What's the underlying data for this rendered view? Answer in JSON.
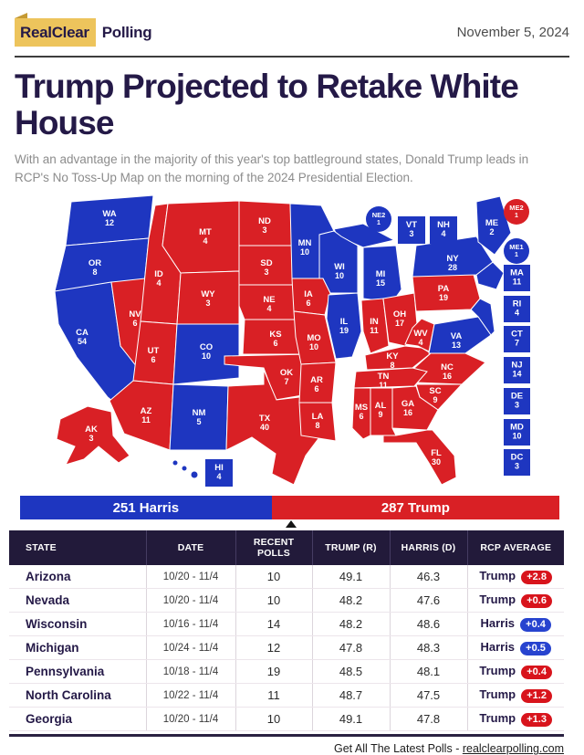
{
  "header": {
    "logo_primary": "RealClear",
    "logo_secondary": "Polling",
    "date": "November 5, 2024"
  },
  "headline": "Trump Projected to Retake White House",
  "subtitle": "With an advantage in the majority of this year's top battleground states, Donald Trump leads in RCP's No Toss-Up Map on the morning of the 2024 Presidential Election.",
  "colors": {
    "dem": "#1e36c0",
    "gop": "#d92025",
    "pill_dem": "#2743cf",
    "pill_gop": "#d8141c",
    "navy": "#241947",
    "header_bg": "#221a3a",
    "logo_yellow": "#edc45c"
  },
  "scoreboard": {
    "harris_label": "251 Harris",
    "trump_label": "287 Trump",
    "harris_ev": 251,
    "trump_ev": 287,
    "total_ev": 538,
    "majority_ev": 270
  },
  "map": {
    "states": [
      {
        "abbr": "WA",
        "ev": 12,
        "party": "dem"
      },
      {
        "abbr": "OR",
        "ev": 8,
        "party": "dem"
      },
      {
        "abbr": "CA",
        "ev": 54,
        "party": "dem"
      },
      {
        "abbr": "NV",
        "ev": 6,
        "party": "gop"
      },
      {
        "abbr": "ID",
        "ev": 4,
        "party": "gop"
      },
      {
        "abbr": "MT",
        "ev": 4,
        "party": "gop"
      },
      {
        "abbr": "WY",
        "ev": 3,
        "party": "gop"
      },
      {
        "abbr": "UT",
        "ev": 6,
        "party": "gop"
      },
      {
        "abbr": "CO",
        "ev": 10,
        "party": "dem"
      },
      {
        "abbr": "AZ",
        "ev": 11,
        "party": "gop"
      },
      {
        "abbr": "NM",
        "ev": 5,
        "party": "dem"
      },
      {
        "abbr": "ND",
        "ev": 3,
        "party": "gop"
      },
      {
        "abbr": "SD",
        "ev": 3,
        "party": "gop"
      },
      {
        "abbr": "NE",
        "ev": 4,
        "party": "gop"
      },
      {
        "abbr": "KS",
        "ev": 6,
        "party": "gop"
      },
      {
        "abbr": "OK",
        "ev": 7,
        "party": "gop"
      },
      {
        "abbr": "TX",
        "ev": 40,
        "party": "gop"
      },
      {
        "abbr": "MN",
        "ev": 10,
        "party": "dem"
      },
      {
        "abbr": "IA",
        "ev": 6,
        "party": "gop"
      },
      {
        "abbr": "MO",
        "ev": 10,
        "party": "gop"
      },
      {
        "abbr": "AR",
        "ev": 6,
        "party": "gop"
      },
      {
        "abbr": "LA",
        "ev": 8,
        "party": "gop"
      },
      {
        "abbr": "WI",
        "ev": 10,
        "party": "dem"
      },
      {
        "abbr": "IL",
        "ev": 19,
        "party": "dem"
      },
      {
        "abbr": "MI",
        "ev": 15,
        "party": "dem"
      },
      {
        "abbr": "IN",
        "ev": 11,
        "party": "gop"
      },
      {
        "abbr": "OH",
        "ev": 17,
        "party": "gop"
      },
      {
        "abbr": "KY",
        "ev": 8,
        "party": "gop"
      },
      {
        "abbr": "WV",
        "ev": 4,
        "party": "gop"
      },
      {
        "abbr": "VA",
        "ev": 13,
        "party": "dem"
      },
      {
        "abbr": "PA",
        "ev": 19,
        "party": "gop"
      },
      {
        "abbr": "NY",
        "ev": 28,
        "party": "dem"
      },
      {
        "abbr": "ME",
        "ev": 2,
        "party": "dem"
      },
      {
        "abbr": "NC",
        "ev": 16,
        "party": "gop"
      },
      {
        "abbr": "SC",
        "ev": 9,
        "party": "gop"
      },
      {
        "abbr": "GA",
        "ev": 16,
        "party": "gop"
      },
      {
        "abbr": "AL",
        "ev": 9,
        "party": "gop"
      },
      {
        "abbr": "MS",
        "ev": 6,
        "party": "gop"
      },
      {
        "abbr": "TN",
        "ev": 11,
        "party": "gop"
      },
      {
        "abbr": "FL",
        "ev": 30,
        "party": "gop"
      },
      {
        "abbr": "AK",
        "ev": 3,
        "party": "gop"
      },
      {
        "abbr": "HI",
        "ev": 4,
        "party": "dem"
      },
      {
        "abbr": "VT",
        "ev": 3,
        "party": "dem"
      },
      {
        "abbr": "NH",
        "ev": 4,
        "party": "dem"
      },
      {
        "abbr": "MA",
        "ev": 11,
        "party": "dem"
      },
      {
        "abbr": "RI",
        "ev": 4,
        "party": "dem"
      },
      {
        "abbr": "CT",
        "ev": 7,
        "party": "dem"
      },
      {
        "abbr": "NJ",
        "ev": 14,
        "party": "dem"
      },
      {
        "abbr": "DE",
        "ev": 3,
        "party": "dem"
      },
      {
        "abbr": "MD",
        "ev": 10,
        "party": "dem"
      },
      {
        "abbr": "DC",
        "ev": 3,
        "party": "dem"
      },
      {
        "abbr": "NE2",
        "ev": 1,
        "party": "dem"
      },
      {
        "abbr": "ME1",
        "ev": 1,
        "party": "dem"
      },
      {
        "abbr": "ME2",
        "ev": 1,
        "party": "gop"
      }
    ]
  },
  "table": {
    "headers": [
      "STATE",
      "DATE",
      "RECENT POLLS",
      "TRUMP (R)",
      "HARRIS (D)",
      "RCP AVERAGE"
    ],
    "rows": [
      {
        "state": "Arizona",
        "date": "10/20 - 11/4",
        "polls": "10",
        "trump": "49.1",
        "harris": "46.3",
        "leader": "Trump",
        "margin": "+2.8",
        "party": "gop"
      },
      {
        "state": "Nevada",
        "date": "10/20 - 11/4",
        "polls": "10",
        "trump": "48.2",
        "harris": "47.6",
        "leader": "Trump",
        "margin": "+0.6",
        "party": "gop"
      },
      {
        "state": "Wisconsin",
        "date": "10/16 - 11/4",
        "polls": "14",
        "trump": "48.2",
        "harris": "48.6",
        "leader": "Harris",
        "margin": "+0.4",
        "party": "dem"
      },
      {
        "state": "Michigan",
        "date": "10/24 - 11/4",
        "polls": "12",
        "trump": "47.8",
        "harris": "48.3",
        "leader": "Harris",
        "margin": "+0.5",
        "party": "dem"
      },
      {
        "state": "Pennsylvania",
        "date": "10/18 - 11/4",
        "polls": "19",
        "trump": "48.5",
        "harris": "48.1",
        "leader": "Trump",
        "margin": "+0.4",
        "party": "gop"
      },
      {
        "state": "North Carolina",
        "date": "10/22 - 11/4",
        "polls": "11",
        "trump": "48.7",
        "harris": "47.5",
        "leader": "Trump",
        "margin": "+1.2",
        "party": "gop"
      },
      {
        "state": "Georgia",
        "date": "10/20 - 11/4",
        "polls": "10",
        "trump": "49.1",
        "harris": "47.8",
        "leader": "Trump",
        "margin": "+1.3",
        "party": "gop"
      }
    ]
  },
  "footer": {
    "text": "Get All The Latest Polls",
    "separator": "-",
    "link": "realclearpolling.com"
  }
}
